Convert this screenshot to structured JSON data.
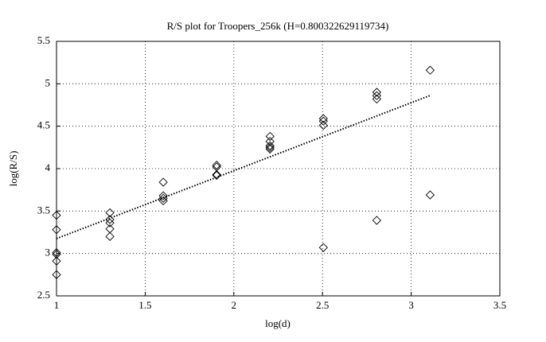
{
  "chart_data": {
    "type": "scatter",
    "title": "R/S plot for Troopers_256k (H=0.800322629119734)",
    "x_label": "log(d)",
    "y_label": "log(R/S)",
    "x": [
      1,
      1,
      1,
      1,
      1,
      1,
      1.301,
      1.301,
      1.301,
      1.301,
      1.301,
      1.602,
      1.602,
      1.602,
      1.602,
      1.903,
      1.903,
      1.903,
      1.903,
      2.204,
      2.204,
      2.204,
      2.204,
      2.204,
      2.505,
      2.505,
      2.505,
      2.505,
      2.806,
      2.806,
      2.806,
      2.806,
      3.107,
      3.107
    ],
    "values": [
      3.45,
      3.28,
      3.01,
      2.99,
      2.91,
      2.75,
      3.48,
      3.4,
      3.36,
      3.29,
      3.2,
      3.84,
      3.68,
      3.65,
      3.62,
      4.04,
      4.02,
      3.93,
      3.92,
      4.38,
      4.32,
      4.27,
      4.25,
      4.23,
      4.59,
      4.56,
      4.51,
      3.07,
      4.9,
      4.86,
      4.82,
      3.39,
      5.16,
      3.69
    ],
    "color": "#000000",
    "fit_line": {
      "x": [
        1,
        3.107
      ],
      "values": [
        3.175,
        4.862
      ],
      "color": "#000000"
    },
    "xlim": [
      1,
      3.5
    ],
    "xticks": [
      1,
      1.5,
      2,
      2.5,
      3,
      3.5
    ],
    "ylim": [
      2.5,
      5.5
    ],
    "yticks": [
      2.5,
      3,
      3.5,
      4,
      4.5,
      5,
      5.5
    ],
    "grid": true
  }
}
